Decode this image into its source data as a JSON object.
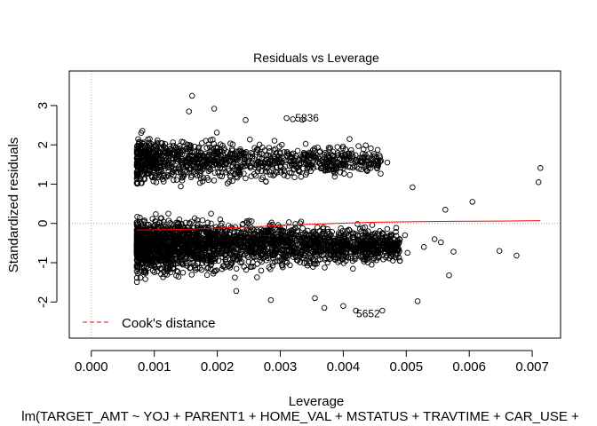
{
  "chart_data": {
    "type": "scatter",
    "title": "Residuals vs Leverage",
    "xlabel": "Leverage",
    "ylabel": "Standardized residuals",
    "subtitle": "lm(TARGET_AMT ~ YOJ + PARENT1 + HOME_VAL + MSTATUS + TRAVTIME + CAR_USE +",
    "xlim": [
      -0.00035,
      0.00745
    ],
    "ylim": [
      -2.92,
      3.88
    ],
    "x_ticks": [
      0.0,
      0.001,
      0.002,
      0.003,
      0.004,
      0.005,
      0.006,
      0.007
    ],
    "x_tick_labels": [
      "0.000",
      "0.001",
      "0.002",
      "0.003",
      "0.004",
      "0.005",
      "0.006",
      "0.007"
    ],
    "y_ticks": [
      -2,
      -1,
      0,
      1,
      2,
      3
    ],
    "y_tick_labels": [
      "-2",
      "-1",
      "0",
      "1",
      "2",
      "3"
    ],
    "reference_lines": {
      "x": 0,
      "y": 0,
      "style": "dotted",
      "color": "#aaaaaa"
    },
    "clusters": [
      {
        "name": "main",
        "x_range": [
          0.00072,
          0.0049
        ],
        "y_center": -0.55,
        "y_spread": 0.55,
        "count": 2600
      },
      {
        "name": "upper",
        "x_range": [
          0.00072,
          0.0046
        ],
        "y_center": 1.6,
        "y_spread": 0.45,
        "count": 1100
      }
    ],
    "outliers": [
      {
        "x": 0.00713,
        "y": 1.41
      },
      {
        "x": 0.0071,
        "y": 1.05
      },
      {
        "x": 0.00675,
        "y": -0.82
      },
      {
        "x": 0.00648,
        "y": -0.7
      },
      {
        "x": 0.00605,
        "y": 0.55
      },
      {
        "x": 0.00568,
        "y": -1.32
      },
      {
        "x": 0.00562,
        "y": 0.35
      },
      {
        "x": 0.00575,
        "y": -0.72
      },
      {
        "x": 0.00555,
        "y": -0.48
      },
      {
        "x": 0.00545,
        "y": -0.4
      },
      {
        "x": 0.00528,
        "y": -0.6
      },
      {
        "x": 0.00518,
        "y": -1.98
      },
      {
        "x": 0.0051,
        "y": 0.92
      },
      {
        "x": 0.00502,
        "y": -0.75
      },
      {
        "x": 0.00498,
        "y": -0.3
      },
      {
        "x": 0.0049,
        "y": -0.95
      },
      {
        "x": 0.0048,
        "y": -0.5
      },
      {
        "x": 0.0047,
        "y": 1.55
      },
      {
        "x": 0.00462,
        "y": -2.22
      },
      {
        "x": 0.00455,
        "y": -0.85
      },
      {
        "x": 0.00445,
        "y": -1.05
      },
      {
        "x": 0.0042,
        "y": -2.22
      },
      {
        "x": 0.0041,
        "y": 2.15
      },
      {
        "x": 0.004,
        "y": -2.1
      },
      {
        "x": 0.0016,
        "y": 3.25
      },
      {
        "x": 0.00155,
        "y": 2.85
      },
      {
        "x": 0.00195,
        "y": 2.92
      },
      {
        "x": 0.00245,
        "y": 2.63
      },
      {
        "x": 0.0031,
        "y": 2.68
      },
      {
        "x": 0.0032,
        "y": 2.65
      },
      {
        "x": 0.00335,
        "y": 2.64
      },
      {
        "x": 0.00355,
        "y": -1.9
      },
      {
        "x": 0.0037,
        "y": -2.15
      },
      {
        "x": 0.00285,
        "y": -1.95
      },
      {
        "x": 0.0023,
        "y": -1.72
      }
    ],
    "smooth_line": {
      "color": "#ff0000",
      "x": [
        0.00072,
        0.0015,
        0.0025,
        0.0035,
        0.0045,
        0.0055,
        0.0065,
        0.00713
      ],
      "y": [
        -0.17,
        -0.15,
        -0.09,
        -0.02,
        0.03,
        0.05,
        0.06,
        0.07
      ]
    },
    "point_labels": [
      {
        "label": "5836",
        "x": 0.00318,
        "y": 2.68
      },
      {
        "label": "5652",
        "x": 0.00415,
        "y": -2.3
      }
    ],
    "legend": {
      "placement": "bottom-left",
      "label": "Cook's distance",
      "line_style": "dashed",
      "color": "#ff0000"
    }
  }
}
